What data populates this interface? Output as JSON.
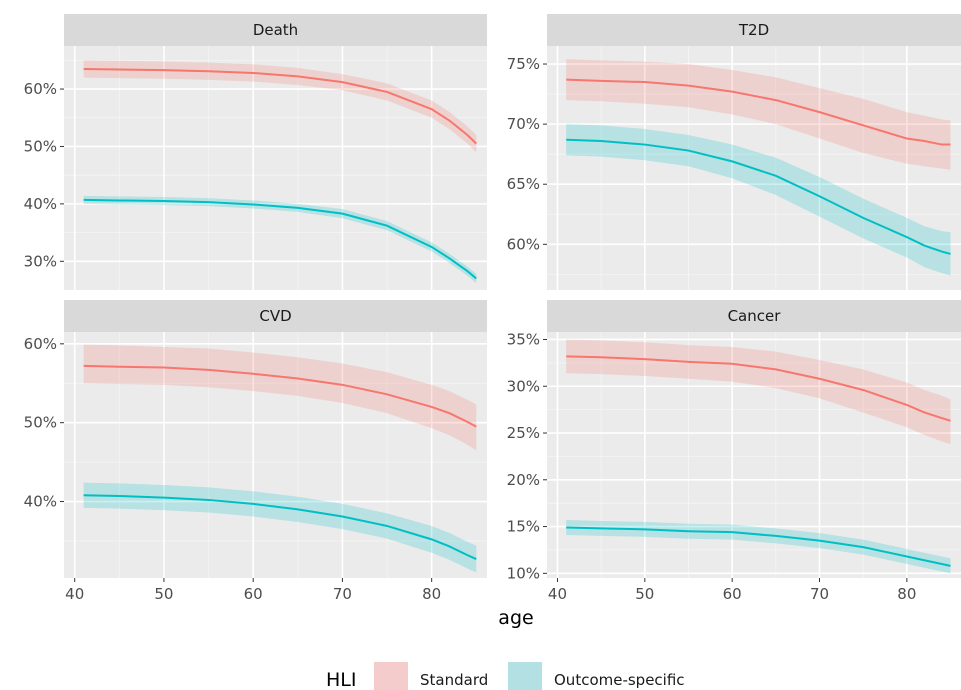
{
  "chart_data": {
    "type": "line",
    "xlabel": "age",
    "x": [
      41,
      45,
      50,
      55,
      60,
      65,
      70,
      75,
      80,
      82,
      84,
      85
    ],
    "xticks": [
      40,
      50,
      60,
      70,
      80
    ],
    "legend": {
      "title": "HLI",
      "placement": "bottom",
      "entries": [
        {
          "name": "Standard",
          "color": "#F8766D",
          "fill": "#F4CCCC"
        },
        {
          "name": "Outcome-specific",
          "color": "#00BFC4",
          "fill": "#B3E0E2"
        }
      ]
    },
    "panels": [
      {
        "title": "Death",
        "ylim": [
          25,
          67.5
        ],
        "yticks": [
          30,
          40,
          50,
          60
        ],
        "ytick_labels": [
          "30%",
          "40%",
          "50%",
          "60%"
        ],
        "series": [
          {
            "name": "Standard",
            "values": [
              63.5,
              63.4,
              63.3,
              63.1,
              62.8,
              62.2,
              61.2,
              59.5,
              56.5,
              54.5,
              52.0,
              50.5
            ],
            "lower": [
              62.0,
              61.9,
              61.8,
              61.6,
              61.3,
              60.7,
              59.8,
              58.0,
              55.0,
              53.0,
              50.5,
              49.0
            ],
            "upper": [
              65.0,
              64.9,
              64.8,
              64.6,
              64.3,
              63.7,
              62.6,
              61.0,
              58.0,
              56.0,
              53.5,
              52.0
            ]
          },
          {
            "name": "Outcome-specific",
            "values": [
              40.7,
              40.6,
              40.5,
              40.3,
              39.9,
              39.3,
              38.3,
              36.2,
              32.5,
              30.5,
              28.3,
              27.0
            ],
            "lower": [
              40.0,
              39.9,
              39.8,
              39.6,
              39.2,
              38.6,
              37.5,
              35.4,
              31.7,
              29.7,
              27.5,
              26.2
            ],
            "upper": [
              41.4,
              41.3,
              41.2,
              41.0,
              40.6,
              40.0,
              39.1,
              37.0,
              33.3,
              31.3,
              29.1,
              27.8
            ]
          }
        ]
      },
      {
        "title": "T2D",
        "ylim": [
          56.2,
          76.5
        ],
        "yticks": [
          60,
          65,
          70,
          75
        ],
        "ytick_labels": [
          "60%",
          "65%",
          "70%",
          "75%"
        ],
        "series": [
          {
            "name": "Standard",
            "values": [
              73.7,
              73.6,
              73.5,
              73.2,
              72.7,
              72.0,
              71.0,
              69.9,
              68.8,
              68.6,
              68.3,
              68.3
            ],
            "lower": [
              72.0,
              71.9,
              71.7,
              71.4,
              70.8,
              70.0,
              68.8,
              67.6,
              66.7,
              66.5,
              66.3,
              66.2
            ],
            "upper": [
              75.4,
              75.3,
              75.2,
              75.0,
              74.5,
              73.9,
              73.0,
              72.1,
              71.0,
              70.7,
              70.4,
              70.3
            ]
          },
          {
            "name": "Outcome-specific",
            "values": [
              68.7,
              68.6,
              68.3,
              67.8,
              66.9,
              65.7,
              64.0,
              62.2,
              60.6,
              59.9,
              59.4,
              59.2
            ],
            "lower": [
              67.4,
              67.3,
              67.0,
              66.5,
              65.5,
              64.1,
              62.3,
              60.5,
              58.9,
              58.1,
              57.6,
              57.4
            ],
            "upper": [
              70.0,
              69.9,
              69.6,
              69.1,
              68.3,
              67.2,
              65.6,
              63.8,
              62.2,
              61.5,
              61.1,
              61.0
            ]
          }
        ]
      },
      {
        "title": "CVD",
        "ylim": [
          30.3,
          61.5
        ],
        "yticks": [
          40,
          50,
          60
        ],
        "ytick_labels": [
          "40%",
          "50%",
          "60%"
        ],
        "series": [
          {
            "name": "Standard",
            "values": [
              57.2,
              57.1,
              57.0,
              56.7,
              56.2,
              55.6,
              54.8,
              53.6,
              52.0,
              51.2,
              50.1,
              49.5
            ],
            "lower": [
              55.0,
              54.9,
              54.8,
              54.5,
              54.0,
              53.4,
              52.5,
              51.2,
              49.3,
              48.4,
              47.2,
              46.5
            ],
            "upper": [
              59.9,
              59.8,
              59.6,
              59.4,
              58.9,
              58.3,
              57.5,
              56.4,
              54.8,
              54.0,
              52.9,
              52.3
            ]
          },
          {
            "name": "Outcome-specific",
            "values": [
              40.8,
              40.7,
              40.5,
              40.2,
              39.7,
              39.0,
              38.1,
              36.9,
              35.2,
              34.3,
              33.2,
              32.7
            ],
            "lower": [
              39.2,
              39.1,
              38.9,
              38.6,
              38.1,
              37.4,
              36.5,
              35.3,
              33.5,
              32.6,
              31.5,
              31.0
            ],
            "upper": [
              42.4,
              42.3,
              42.1,
              41.8,
              41.3,
              40.6,
              39.7,
              38.5,
              36.9,
              36.0,
              34.9,
              34.4
            ]
          }
        ]
      },
      {
        "title": "Cancer",
        "ylim": [
          9.5,
          35.8
        ],
        "yticks": [
          10,
          15,
          20,
          25,
          30,
          35
        ],
        "ytick_labels": [
          "10%",
          "15%",
          "20%",
          "25%",
          "30%",
          "35%"
        ],
        "series": [
          {
            "name": "Standard",
            "values": [
              33.2,
              33.1,
              32.9,
              32.6,
              32.4,
              31.8,
              30.8,
              29.6,
              28.0,
              27.2,
              26.6,
              26.3
            ],
            "lower": [
              31.4,
              31.3,
              31.1,
              30.8,
              30.5,
              29.8,
              28.7,
              27.2,
              25.6,
              24.8,
              24.1,
              23.8
            ],
            "upper": [
              35.0,
              34.9,
              34.7,
              34.4,
              34.2,
              33.7,
              32.8,
              31.8,
              30.4,
              29.6,
              29.0,
              28.6
            ]
          },
          {
            "name": "Outcome-specific",
            "values": [
              14.9,
              14.8,
              14.7,
              14.5,
              14.4,
              14.0,
              13.5,
              12.8,
              11.8,
              11.4,
              11.0,
              10.8
            ],
            "lower": [
              14.1,
              14.0,
              13.9,
              13.7,
              13.6,
              13.2,
              12.7,
              12.0,
              11.0,
              10.6,
              10.2,
              10.0
            ],
            "upper": [
              15.7,
              15.6,
              15.5,
              15.3,
              15.2,
              14.8,
              14.3,
              13.6,
              12.6,
              12.2,
              11.8,
              11.6
            ]
          }
        ]
      }
    ]
  }
}
